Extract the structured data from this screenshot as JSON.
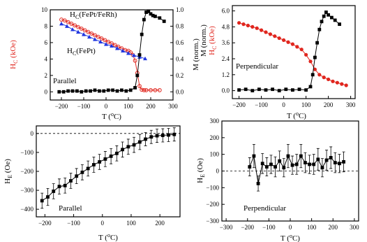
{
  "colors": {
    "red": "#e0261e",
    "blue": "#1f35e0",
    "black": "#000000"
  },
  "chart_data": [
    {
      "type": "scatter",
      "xlabel": "T (°C)",
      "ylabel_left": "H_C (kOe)",
      "ylabel_right": "M (norm.)",
      "xlim": [
        -250,
        300
      ],
      "ylim_left": [
        -1,
        10
      ],
      "ylim_right": [
        -0.1,
        1.0
      ],
      "xticks": [
        -200,
        -100,
        0,
        100,
        200,
        300
      ],
      "yticks_left": [
        0,
        2,
        4,
        6,
        8,
        10
      ],
      "yticks_right": [
        0.0,
        0.2,
        0.4,
        0.6,
        0.8,
        1.0
      ],
      "annotations": [
        "H_C(FePt/FeRh)",
        "H_C(FePt)",
        "Parallel"
      ],
      "series": [
        {
          "color": "#e0261e",
          "marker": "open-circle",
          "axis": "left",
          "x": [
            -200,
            -185,
            -170,
            -155,
            -140,
            -125,
            -110,
            -95,
            -80,
            -65,
            -50,
            -35,
            -20,
            -5,
            10,
            25,
            40,
            55,
            70,
            85,
            100,
            110,
            120,
            130,
            140,
            150,
            160,
            170,
            180,
            200,
            220,
            240
          ],
          "y": [
            8.8,
            8.7,
            8.5,
            8.3,
            8.1,
            7.9,
            7.7,
            7.5,
            7.3,
            7.1,
            6.9,
            6.7,
            6.5,
            6.3,
            6.1,
            5.9,
            5.7,
            5.5,
            5.3,
            5.1,
            5.0,
            4.8,
            4.5,
            3.8,
            2.3,
            0.7,
            0.25,
            0.2,
            0.2,
            0.2,
            0.2,
            0.2
          ]
        },
        {
          "color": "#1f35e0",
          "marker": "filled-triangle",
          "axis": "left",
          "x": [
            -200,
            -175,
            -150,
            -125,
            -100,
            -75,
            -50,
            -25,
            0,
            25,
            50,
            75,
            100,
            125,
            150,
            175
          ],
          "y": [
            8.3,
            8.0,
            7.6,
            7.3,
            7.0,
            6.7,
            6.4,
            6.1,
            5.8,
            5.6,
            5.3,
            5.0,
            4.7,
            4.45,
            4.25,
            4.05
          ]
        },
        {
          "color": "#000000",
          "marker": "filled-square",
          "axis": "right",
          "x": [
            -210,
            -190,
            -170,
            -150,
            -130,
            -110,
            -90,
            -70,
            -50,
            -30,
            -10,
            10,
            30,
            50,
            70,
            90,
            110,
            130,
            140,
            150,
            160,
            170,
            180,
            190,
            200,
            210,
            220,
            240,
            260
          ],
          "y": [
            0.0,
            0.0,
            0.01,
            0.01,
            0.01,
            0.0,
            0.01,
            0.01,
            0.02,
            0.01,
            0.01,
            0.02,
            0.02,
            0.01,
            0.02,
            0.01,
            0.02,
            0.05,
            0.2,
            0.45,
            0.7,
            0.88,
            0.97,
            0.98,
            0.95,
            0.93,
            0.92,
            0.9,
            0.86
          ]
        }
      ]
    },
    {
      "type": "scatter",
      "xlabel": "T (°C)",
      "ylabel_left": "H_C (kOe)",
      "ylabel_right": "M (norm.)",
      "xlim": [
        -230,
        320
      ],
      "ylim_left": [
        -0.6,
        6.4
      ],
      "xticks": [
        -200,
        -100,
        0,
        100,
        200,
        300
      ],
      "yticks_left": [
        0.0,
        1.2,
        2.4,
        3.6,
        4.8,
        6.0
      ],
      "annotations": [
        "Perpendicular"
      ],
      "series": [
        {
          "color": "#e0261e",
          "marker": "filled-circle",
          "axis": "left",
          "x": [
            -200,
            -180,
            -160,
            -140,
            -120,
            -100,
            -80,
            -60,
            -40,
            -20,
            0,
            20,
            40,
            60,
            80,
            100,
            120,
            140,
            160,
            180,
            200,
            220,
            240,
            260,
            280
          ],
          "y": [
            5.1,
            5.0,
            4.9,
            4.8,
            4.7,
            4.55,
            4.4,
            4.25,
            4.1,
            3.95,
            3.8,
            3.65,
            3.5,
            3.3,
            3.1,
            2.7,
            2.2,
            1.6,
            1.2,
            1.0,
            0.85,
            0.7,
            0.6,
            0.5,
            0.4
          ]
        },
        {
          "color": "#000000",
          "marker": "filled-square",
          "axis": "left",
          "x": [
            -200,
            -170,
            -140,
            -110,
            -80,
            -50,
            -20,
            10,
            40,
            70,
            100,
            120,
            130,
            140,
            150,
            160,
            170,
            180,
            190,
            200,
            215,
            230,
            250
          ],
          "y": [
            0.05,
            0.1,
            0.0,
            0.1,
            0.05,
            0.1,
            0.0,
            0.1,
            0.05,
            0.1,
            0.05,
            0.3,
            1.2,
            2.5,
            3.6,
            4.6,
            5.2,
            5.6,
            5.9,
            5.7,
            5.5,
            5.3,
            5.0
          ]
        }
      ]
    },
    {
      "type": "scatter",
      "xlabel": "T (°C)",
      "ylabel": "H_E (Oe)",
      "xlim": [
        -230,
        270
      ],
      "ylim": [
        -440,
        40
      ],
      "xticks": [
        -200,
        -100,
        0,
        100,
        200
      ],
      "yticks": [
        0,
        -100,
        -200,
        -300,
        -400
      ],
      "annotations": [
        "Parallel"
      ],
      "series": [
        {
          "color": "#000000",
          "marker": "filled-square",
          "x": [
            -210,
            -190,
            -170,
            -150,
            -130,
            -110,
            -90,
            -70,
            -50,
            -30,
            -10,
            10,
            30,
            50,
            70,
            90,
            110,
            130,
            150,
            170,
            190,
            210,
            230,
            250
          ],
          "y": [
            -355,
            -335,
            -305,
            -280,
            -275,
            -250,
            -225,
            -205,
            -185,
            -165,
            -150,
            -135,
            -120,
            -105,
            -85,
            -70,
            -60,
            -45,
            -30,
            -18,
            -12,
            -10,
            -8,
            -5
          ],
          "err": [
            40,
            45,
            40,
            40,
            40,
            40,
            40,
            40,
            40,
            40,
            40,
            40,
            40,
            40,
            40,
            40,
            40,
            40,
            35,
            35,
            35,
            35,
            35,
            35
          ]
        }
      ]
    },
    {
      "type": "scatter",
      "xlabel": "T (°C)",
      "ylabel": "H_E (Oe)",
      "xlim": [
        -320,
        320
      ],
      "ylim": [
        -300,
        300
      ],
      "xticks": [
        -300,
        -200,
        -100,
        0,
        100,
        200,
        300
      ],
      "yticks": [
        300,
        200,
        100,
        0,
        -100,
        -200,
        -300
      ],
      "annotations": [
        "Perpendicular"
      ],
      "series": [
        {
          "color": "#000000",
          "marker": "filled-square",
          "x": [
            -190,
            -170,
            -150,
            -130,
            -110,
            -90,
            -70,
            -50,
            -30,
            -10,
            10,
            30,
            50,
            70,
            90,
            110,
            130,
            150,
            170,
            190,
            210,
            230,
            250
          ],
          "y": [
            25,
            90,
            -75,
            45,
            25,
            40,
            25,
            60,
            20,
            90,
            35,
            40,
            90,
            50,
            40,
            40,
            70,
            20,
            65,
            80,
            50,
            45,
            55
          ],
          "err": [
            55,
            70,
            45,
            60,
            55,
            55,
            60,
            60,
            55,
            70,
            55,
            60,
            70,
            60,
            55,
            60,
            65,
            55,
            60,
            65,
            60,
            55,
            60
          ]
        }
      ]
    }
  ]
}
